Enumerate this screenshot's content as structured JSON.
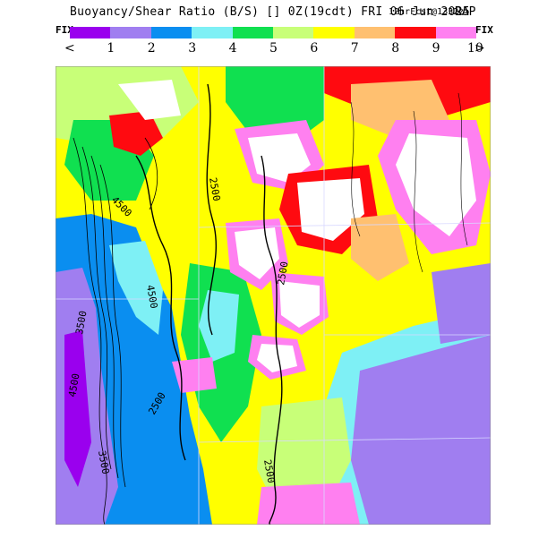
{
  "header": {
    "title": "Buoyancy/Shear Ratio (B/S) [] 0Z(19cdt) FRI 06 Jun 2025",
    "forecast_note": "12hrFcst@1332z",
    "model": "RAP"
  },
  "colorbar": {
    "fix_left": "FIX",
    "fix_right": "FIX",
    "arrow_left": "<",
    "arrow_right": ">",
    "colors": [
      "#9a00ee",
      "#a07ef0",
      "#0a8ef0",
      "#7ef0f5",
      "#10e050",
      "#c8ff78",
      "#ffff00",
      "#ffc070",
      "#ff0a10",
      "#ff80f0"
    ],
    "labels": [
      "1",
      "2",
      "3",
      "4",
      "5",
      "6",
      "7",
      "8",
      "9",
      "10"
    ]
  },
  "map": {
    "contour_labels": [
      "2500",
      "4500",
      "4500",
      "2500",
      "2500",
      "2500",
      "3500",
      "4500",
      "3500"
    ]
  }
}
